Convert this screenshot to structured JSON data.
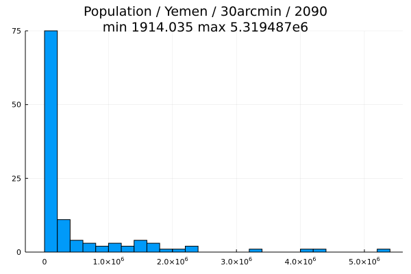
{
  "chart_data": {
    "type": "bar",
    "title_line1": "Population / Yemen / 30arcmin / 2090",
    "title_line2": "min 1914.035  max 5.319487e6",
    "xlabel": "",
    "ylabel": "",
    "bin_width": 200000,
    "bins": [
      {
        "x_start": 0,
        "count": 75
      },
      {
        "x_start": 200000,
        "count": 11
      },
      {
        "x_start": 400000,
        "count": 4
      },
      {
        "x_start": 600000,
        "count": 3
      },
      {
        "x_start": 800000,
        "count": 2
      },
      {
        "x_start": 1000000,
        "count": 3
      },
      {
        "x_start": 1200000,
        "count": 2
      },
      {
        "x_start": 1400000,
        "count": 4
      },
      {
        "x_start": 1600000,
        "count": 3
      },
      {
        "x_start": 1800000,
        "count": 1
      },
      {
        "x_start": 2000000,
        "count": 1
      },
      {
        "x_start": 2200000,
        "count": 2
      },
      {
        "x_start": 3200000,
        "count": 1
      },
      {
        "x_start": 4000000,
        "count": 1
      },
      {
        "x_start": 4200000,
        "count": 1
      },
      {
        "x_start": 5200000,
        "count": 1
      }
    ],
    "xlim": [
      -300000,
      5600000
    ],
    "ylim": [
      0,
      75
    ],
    "y_ticks": [
      {
        "value": 0,
        "label": "0"
      },
      {
        "value": 25,
        "label": "25"
      },
      {
        "value": 50,
        "label": "50"
      },
      {
        "value": 75,
        "label": "75"
      }
    ],
    "x_ticks": [
      {
        "value": 0,
        "base": "0",
        "exp": ""
      },
      {
        "value": 1000000,
        "base": "1.0×10",
        "exp": "6"
      },
      {
        "value": 2000000,
        "base": "2.0×10",
        "exp": "6"
      },
      {
        "value": 3000000,
        "base": "3.0×10",
        "exp": "6"
      },
      {
        "value": 4000000,
        "base": "4.0×10",
        "exp": "6"
      },
      {
        "value": 5000000,
        "base": "5.0×10",
        "exp": "6"
      }
    ],
    "grid": true,
    "legend": "none",
    "bar_color": "#009af9",
    "bar_edge_color": "#000000"
  }
}
